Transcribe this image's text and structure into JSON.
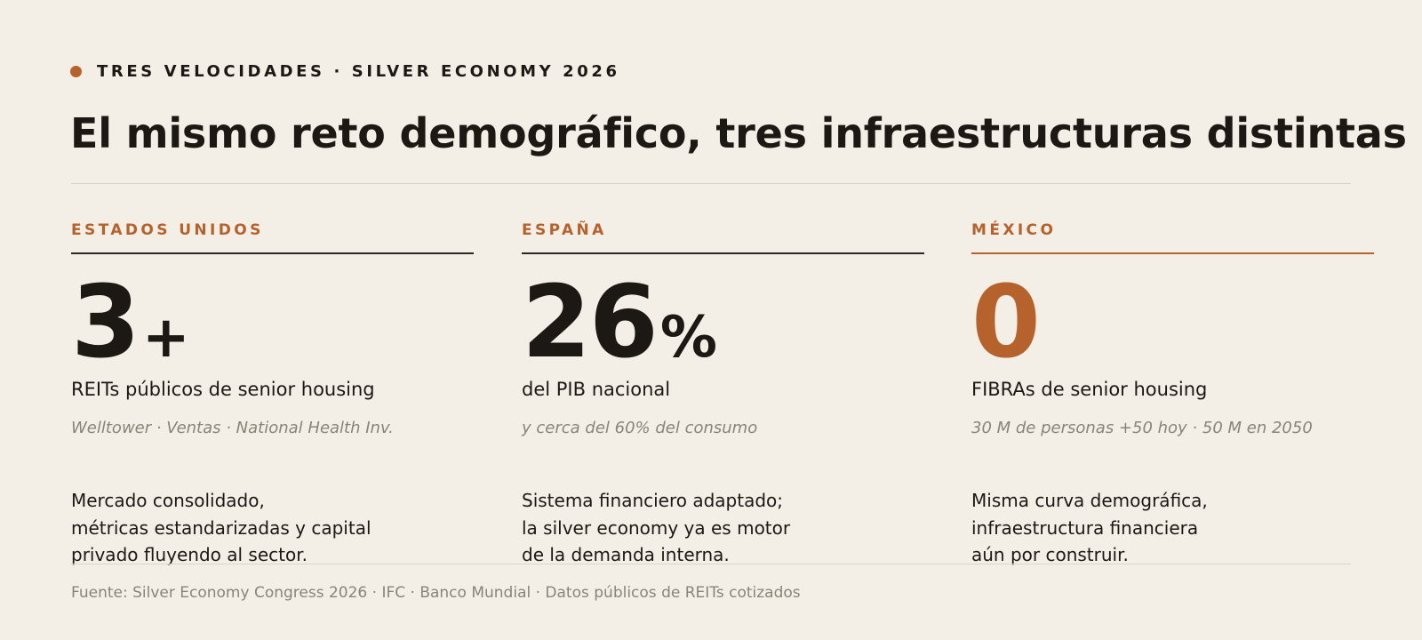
{
  "eyebrow": "TRES VELOCIDADES · SILVER ECONOMY 2026",
  "title": "El mismo reto demográfico, tres infraestructuras distintas",
  "colors": {
    "accent": "#b5622c",
    "background": "#f3efe7",
    "text": "#1c1814",
    "muted": "#8a837a"
  },
  "columns": [
    {
      "country": "ESTADOS UNIDOS",
      "number": "3",
      "suffix": "+",
      "metric": "REITs públicos de senior housing",
      "sub": "Welltower · Ventas · National Health Inv.",
      "desc": [
        "Mercado consolidado,",
        "métricas estandarizadas y capital",
        "privado fluyendo al sector."
      ]
    },
    {
      "country": "ESPAÑA",
      "number": "26",
      "suffix": "%",
      "metric": "del PIB nacional",
      "sub": "y cerca del 60% del consumo",
      "desc": [
        "Sistema financiero adaptado;",
        "la silver economy ya es motor",
        "de la demanda interna."
      ]
    },
    {
      "country": "MÉXICO",
      "number": "0",
      "suffix": "",
      "metric": "FIBRAs de senior housing",
      "sub": "30 M de personas +50 hoy · 50 M en 2050",
      "desc": [
        "Misma curva demográfica,",
        "infraestructura financiera",
        "aún por construir."
      ]
    }
  ],
  "source": "Fuente: Silver Economy Congress 2026 · IFC · Banco Mundial · Datos públicos de REITs cotizados"
}
